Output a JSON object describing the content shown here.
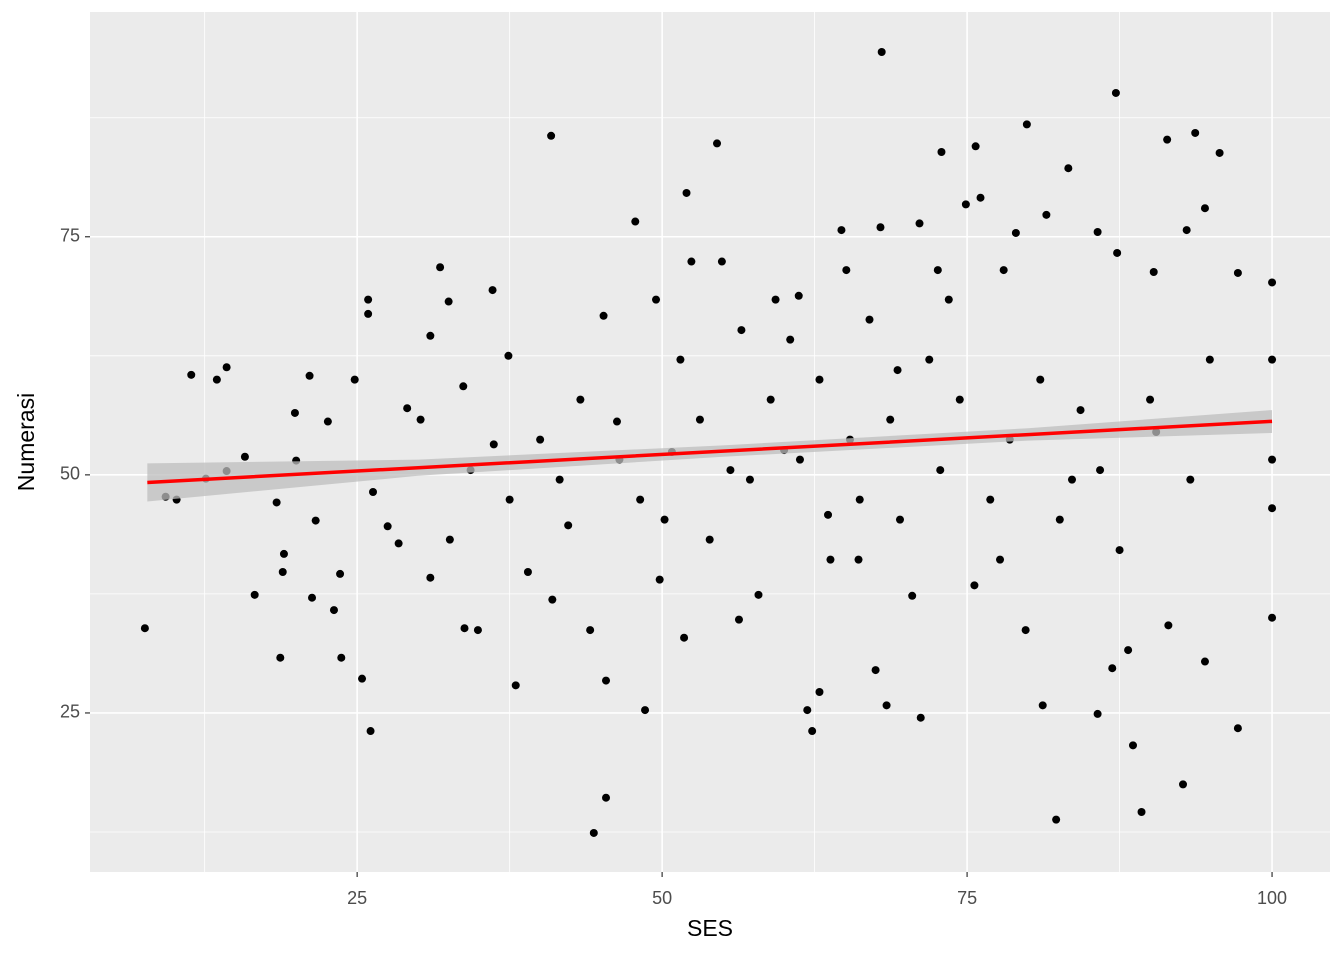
{
  "chart_data": {
    "type": "scatter",
    "x_label": "SES",
    "y_label": "Numerasi",
    "xlim": [
      3.1,
      104.75
    ],
    "ylim": [
      8.3,
      98.6
    ],
    "xticks": [
      25,
      50,
      75,
      100
    ],
    "yticks": [
      25,
      50,
      75
    ],
    "grid": true,
    "series": [
      {
        "color": "#000000",
        "x": [
          7.6,
          9.3,
          10.2,
          11.4,
          12.6,
          13.5,
          14.3,
          14.3,
          15.8,
          16.6,
          18.4,
          18.7,
          18.9,
          19.0,
          19.9,
          20.0,
          21.1,
          21.3,
          21.6,
          22.6,
          23.1,
          23.7,
          23.6,
          24.8,
          25.4,
          25.9,
          25.9,
          26.1,
          26.3,
          27.5,
          28.4,
          29.1,
          31.0,
          31.8,
          31.0,
          32.5,
          33.7,
          33.8,
          34.9,
          36.1,
          36.2,
          37.4,
          38.0,
          39.0,
          40.9,
          41.0,
          42.3,
          44.1,
          44.4,
          45.4,
          45.4,
          45.2,
          46.3,
          47.8,
          48.6,
          49.5,
          50.2,
          50.8,
          52.0,
          52.4,
          51.8,
          54.5,
          54.9,
          55.6,
          56.5,
          57.9,
          59.3,
          60.0,
          61.2,
          61.9,
          62.3,
          62.9,
          64.7,
          63.6,
          65.1,
          66.1,
          67.5,
          68.0,
          67.9,
          68.4,
          69.3,
          70.5,
          71.2,
          71.1,
          72.9,
          72.6,
          74.9,
          75.7,
          76.1,
          75.6,
          78.0,
          79.0,
          79.9,
          79.8,
          81.2,
          81.5,
          82.3,
          83.3,
          83.6,
          85.7,
          85.7,
          86.9,
          87.2,
          87.3,
          88.2,
          88.6,
          89.3,
          90.3,
          91.4,
          91.5,
          92.7,
          93.0,
          93.7,
          94.5,
          94.5,
          95.7,
          97.2,
          97.2,
          100,
          100,
          100,
          100,
          100,
          90.5,
          46.5,
          48.2,
          53.1,
          53.9,
          57.2,
          58.9,
          61.3,
          62.9,
          63.8,
          65.4,
          66.2,
          68.7,
          69.5,
          71.9,
          72.8,
          74.4,
          76.9,
          78.5,
          81.0,
          82.6,
          84.3,
          85.9,
          87.5,
          90.0,
          93.3,
          94.9,
          43.3,
          41.6,
          40.0,
          37.5,
          34.3,
          32.6,
          30.2,
          49.8,
          56.3,
          51.5,
          60.5,
          67.0,
          73.5,
          77.7
        ],
        "values": [
          33.9,
          47.7,
          47.4,
          60.5,
          49.6,
          60.0,
          61.3,
          50.4,
          51.9,
          37.4,
          47.1,
          30.8,
          39.8,
          41.7,
          56.5,
          51.5,
          60.4,
          37.1,
          45.2,
          55.6,
          35.8,
          30.8,
          39.6,
          60.0,
          28.6,
          68.4,
          66.9,
          23.1,
          48.2,
          44.6,
          42.8,
          57.0,
          64.6,
          71.8,
          39.2,
          68.2,
          59.3,
          33.9,
          33.7,
          69.4,
          53.2,
          62.5,
          27.9,
          39.8,
          85.6,
          36.9,
          44.7,
          33.7,
          12.4,
          16.1,
          28.4,
          66.7,
          55.6,
          76.6,
          25.3,
          68.4,
          45.3,
          52.4,
          79.6,
          72.4,
          32.9,
          84.8,
          72.4,
          50.5,
          65.2,
          37.4,
          68.4,
          52.6,
          68.8,
          25.3,
          23.1,
          27.2,
          75.7,
          45.8,
          71.5,
          41.1,
          29.5,
          94.4,
          76.0,
          25.8,
          61.0,
          37.3,
          24.5,
          76.4,
          83.9,
          71.5,
          78.4,
          84.5,
          79.1,
          38.4,
          71.5,
          75.4,
          86.8,
          33.7,
          25.8,
          77.3,
          13.8,
          82.2,
          49.5,
          75.5,
          24.9,
          29.7,
          90.1,
          73.3,
          31.6,
          21.6,
          14.6,
          71.3,
          85.2,
          34.2,
          17.5,
          75.7,
          85.9,
          78.0,
          30.4,
          83.8,
          71.2,
          23.4,
          70.2,
          62.1,
          51.6,
          46.5,
          35.0,
          54.5,
          51.6,
          47.4,
          55.8,
          43.2,
          49.5,
          57.9,
          51.6,
          60.0,
          41.1,
          53.7,
          47.4,
          55.8,
          45.3,
          62.1,
          50.5,
          57.9,
          47.4,
          53.7,
          60.0,
          45.3,
          56.8,
          50.5,
          42.1,
          57.9,
          49.5,
          62.1,
          57.9,
          49.5,
          53.7,
          47.4,
          50.5,
          43.2,
          55.8,
          39.0,
          34.8,
          62.1,
          64.2,
          66.3,
          68.4,
          41.1
        ]
      }
    ],
    "smooth": {
      "color": "#ff0000",
      "band_color": "#bdbdbd",
      "x": [
        7.8,
        30,
        55,
        80,
        100
      ],
      "values": [
        49.2,
        50.75,
        52.49,
        54.23,
        55.62
      ],
      "lower": [
        47.2,
        49.9,
        51.9,
        53.6,
        54.4
      ],
      "upper": [
        51.2,
        51.6,
        53.1,
        54.9,
        56.8
      ]
    }
  }
}
